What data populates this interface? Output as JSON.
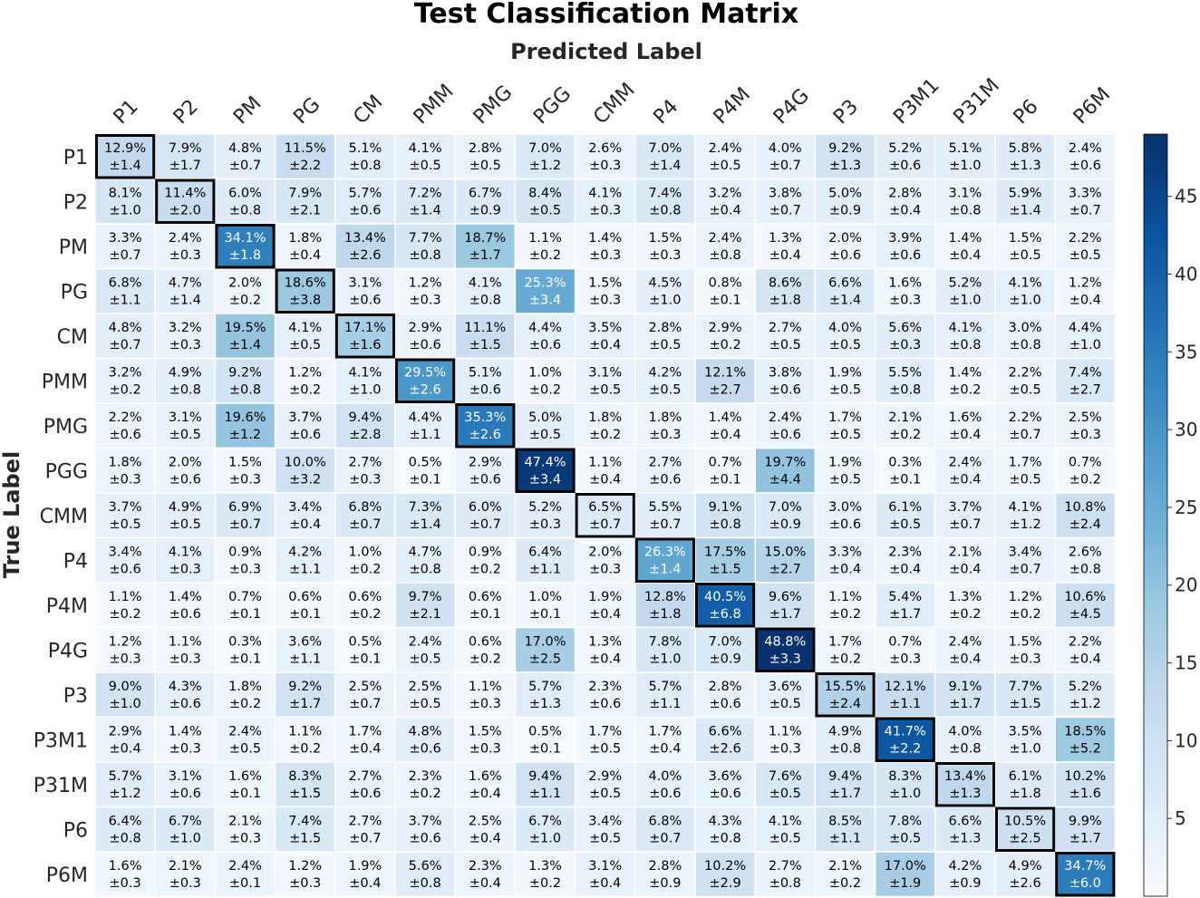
{
  "chart_data": {
    "type": "heatmap",
    "title": "Test Classification Matrix",
    "xlabel": "Predicted Label",
    "ylabel": "True Label",
    "x_categories": [
      "P1",
      "P2",
      "PM",
      "PG",
      "CM",
      "PMM",
      "PMG",
      "PGG",
      "CMM",
      "P4",
      "P4M",
      "P4G",
      "P3",
      "P3M1",
      "P31M",
      "P6",
      "P6M"
    ],
    "y_categories": [
      "P1",
      "P2",
      "PM",
      "PG",
      "CM",
      "PMM",
      "PMG",
      "PGG",
      "CMM",
      "P4",
      "P4M",
      "P4G",
      "P3",
      "P3M1",
      "P31M",
      "P6",
      "P6M"
    ],
    "values": [
      [
        12.9,
        7.9,
        4.8,
        11.5,
        5.1,
        4.1,
        2.8,
        7.0,
        2.6,
        7.0,
        2.4,
        4.0,
        9.2,
        5.2,
        5.1,
        5.8,
        2.4
      ],
      [
        8.1,
        11.4,
        6.0,
        7.9,
        5.7,
        7.2,
        6.7,
        8.4,
        4.1,
        7.4,
        3.2,
        3.8,
        5.0,
        2.8,
        3.1,
        5.9,
        3.3
      ],
      [
        3.3,
        2.4,
        34.1,
        1.8,
        13.4,
        7.7,
        18.7,
        1.1,
        1.4,
        1.5,
        2.4,
        1.3,
        2.0,
        3.9,
        1.4,
        1.5,
        2.2
      ],
      [
        6.8,
        4.7,
        2.0,
        18.6,
        3.1,
        1.2,
        4.1,
        25.3,
        1.5,
        4.5,
        0.8,
        8.6,
        6.6,
        1.6,
        5.2,
        4.1,
        1.2
      ],
      [
        4.8,
        3.2,
        19.5,
        4.1,
        17.1,
        2.9,
        11.1,
        4.4,
        3.5,
        2.8,
        2.9,
        2.7,
        4.0,
        5.6,
        4.1,
        3.0,
        4.4
      ],
      [
        3.2,
        4.9,
        9.2,
        1.2,
        4.1,
        29.5,
        5.1,
        1.0,
        3.1,
        4.2,
        12.1,
        3.8,
        1.9,
        5.5,
        1.4,
        2.2,
        7.4
      ],
      [
        2.2,
        3.1,
        19.6,
        3.7,
        9.4,
        4.4,
        35.3,
        5.0,
        1.8,
        1.8,
        1.4,
        2.4,
        1.7,
        2.1,
        1.6,
        2.2,
        2.5
      ],
      [
        1.8,
        2.0,
        1.5,
        10.0,
        2.7,
        0.5,
        2.9,
        47.4,
        1.1,
        2.7,
        0.7,
        19.7,
        1.9,
        0.3,
        2.4,
        1.7,
        0.7
      ],
      [
        3.7,
        4.9,
        6.9,
        3.4,
        6.8,
        7.3,
        6.0,
        5.2,
        6.5,
        5.5,
        9.1,
        7.0,
        3.0,
        6.1,
        3.7,
        4.1,
        10.8
      ],
      [
        3.4,
        4.1,
        0.9,
        4.2,
        1.0,
        4.7,
        0.9,
        6.4,
        2.0,
        26.3,
        17.5,
        15.0,
        3.3,
        2.3,
        2.1,
        3.4,
        2.6
      ],
      [
        1.1,
        1.4,
        0.7,
        0.6,
        0.6,
        9.7,
        0.6,
        1.0,
        1.9,
        12.8,
        40.5,
        9.6,
        1.1,
        5.4,
        1.3,
        1.2,
        10.6
      ],
      [
        1.2,
        1.1,
        0.3,
        3.6,
        0.5,
        2.4,
        0.6,
        17.0,
        1.3,
        7.8,
        7.0,
        48.8,
        1.7,
        0.7,
        2.4,
        1.5,
        2.2
      ],
      [
        9.0,
        4.3,
        1.8,
        9.2,
        2.5,
        2.5,
        1.1,
        5.7,
        2.3,
        5.7,
        2.8,
        3.6,
        15.5,
        12.1,
        9.1,
        7.7,
        5.2
      ],
      [
        2.9,
        1.4,
        2.4,
        1.1,
        1.7,
        4.8,
        1.5,
        0.5,
        1.7,
        1.7,
        6.6,
        1.1,
        4.9,
        41.7,
        4.0,
        3.5,
        18.5
      ],
      [
        5.7,
        3.1,
        1.6,
        8.3,
        2.7,
        2.3,
        1.6,
        9.4,
        2.9,
        4.0,
        3.6,
        7.6,
        9.4,
        8.3,
        13.4,
        6.1,
        10.2
      ],
      [
        6.4,
        6.7,
        2.1,
        7.4,
        2.7,
        3.7,
        2.5,
        6.7,
        3.4,
        6.8,
        4.3,
        4.1,
        8.5,
        7.8,
        6.6,
        10.5,
        9.9
      ],
      [
        1.6,
        2.1,
        2.4,
        1.2,
        1.9,
        5.6,
        2.3,
        1.3,
        3.1,
        2.8,
        10.2,
        2.7,
        2.1,
        17.0,
        4.2,
        4.9,
        34.7
      ]
    ],
    "errors": [
      [
        1.4,
        1.7,
        0.7,
        2.2,
        0.8,
        0.5,
        0.5,
        1.2,
        0.3,
        1.4,
        0.5,
        0.7,
        1.3,
        0.6,
        1.0,
        1.3,
        0.6
      ],
      [
        1.0,
        2.0,
        0.8,
        2.1,
        0.6,
        1.4,
        0.9,
        0.5,
        0.3,
        0.8,
        0.4,
        0.7,
        0.9,
        0.4,
        0.8,
        1.4,
        0.7
      ],
      [
        0.7,
        0.3,
        1.8,
        0.4,
        2.6,
        0.8,
        1.7,
        0.2,
        0.3,
        0.3,
        0.8,
        0.4,
        0.6,
        0.6,
        0.4,
        0.5,
        0.5
      ],
      [
        1.1,
        1.4,
        0.2,
        3.8,
        0.6,
        0.3,
        0.8,
        3.4,
        0.3,
        1.0,
        0.1,
        1.8,
        1.4,
        0.3,
        1.0,
        1.0,
        0.4
      ],
      [
        0.7,
        0.3,
        1.4,
        0.5,
        1.6,
        0.6,
        1.5,
        0.6,
        0.4,
        0.5,
        0.2,
        0.5,
        0.5,
        0.3,
        0.8,
        0.8,
        1.0
      ],
      [
        0.2,
        0.8,
        0.8,
        0.2,
        1.0,
        2.6,
        0.6,
        0.2,
        0.5,
        0.5,
        2.7,
        0.6,
        0.5,
        0.8,
        0.2,
        0.5,
        2.7
      ],
      [
        0.6,
        0.5,
        1.2,
        0.6,
        2.8,
        1.1,
        2.6,
        0.5,
        0.2,
        0.3,
        0.4,
        0.6,
        0.5,
        0.2,
        0.4,
        0.7,
        0.3
      ],
      [
        0.3,
        0.6,
        0.3,
        3.2,
        0.3,
        0.1,
        0.6,
        3.4,
        0.4,
        0.6,
        0.1,
        4.4,
        0.5,
        0.1,
        0.4,
        0.5,
        0.2
      ],
      [
        0.5,
        0.5,
        0.7,
        0.4,
        0.7,
        1.4,
        0.7,
        0.3,
        0.7,
        0.7,
        0.8,
        0.9,
        0.6,
        0.5,
        0.7,
        1.2,
        2.4
      ],
      [
        0.6,
        0.3,
        0.3,
        1.1,
        0.2,
        0.8,
        0.2,
        1.1,
        0.3,
        1.4,
        1.5,
        2.7,
        0.4,
        0.4,
        0.4,
        0.7,
        0.8
      ],
      [
        0.2,
        0.6,
        0.1,
        0.1,
        0.2,
        2.1,
        0.1,
        0.1,
        0.4,
        1.8,
        6.8,
        1.7,
        0.2,
        1.7,
        0.2,
        0.2,
        4.5
      ],
      [
        0.3,
        0.3,
        0.1,
        1.1,
        0.1,
        0.5,
        0.2,
        2.5,
        0.4,
        1.0,
        0.9,
        3.3,
        0.2,
        0.3,
        0.4,
        0.3,
        0.4
      ],
      [
        1.0,
        0.6,
        0.2,
        1.7,
        0.7,
        0.5,
        0.3,
        1.3,
        0.6,
        1.1,
        0.6,
        0.5,
        2.4,
        1.1,
        1.7,
        1.5,
        1.2
      ],
      [
        0.4,
        0.3,
        0.5,
        0.2,
        0.4,
        0.6,
        0.3,
        0.1,
        0.5,
        0.4,
        2.6,
        0.3,
        0.8,
        2.2,
        0.8,
        1.0,
        5.2
      ],
      [
        1.2,
        0.6,
        0.1,
        1.5,
        0.6,
        0.2,
        0.4,
        1.1,
        0.5,
        0.6,
        0.6,
        0.5,
        1.7,
        1.0,
        1.3,
        1.8,
        1.6
      ],
      [
        0.8,
        1.0,
        0.3,
        1.5,
        0.7,
        0.6,
        0.4,
        1.0,
        0.5,
        0.7,
        0.8,
        0.5,
        1.1,
        0.5,
        1.3,
        2.5,
        1.7
      ],
      [
        0.3,
        0.3,
        0.1,
        0.3,
        0.4,
        0.8,
        0.4,
        0.2,
        0.4,
        0.9,
        2.9,
        0.8,
        0.2,
        1.9,
        0.9,
        2.6,
        6.0
      ]
    ],
    "value_suffix": "%",
    "error_prefix": "±",
    "colormap": "Blues",
    "color_range": [
      0,
      49
    ],
    "colorbar_ticks": [
      5,
      10,
      15,
      20,
      25,
      30,
      35,
      40,
      45
    ],
    "diagonal_highlight": true,
    "colors": {
      "low": "#f7fbff",
      "high": "#08306b",
      "highlight_border": "#000000"
    }
  }
}
